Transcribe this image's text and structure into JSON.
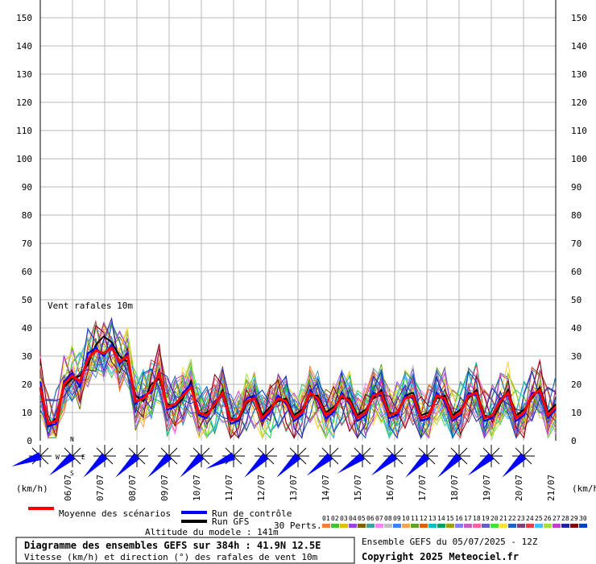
{
  "chart_data": {
    "type": "line",
    "annotation": "Vent rafales 10m",
    "ylim": [
      0,
      150
    ],
    "yticks": [
      0,
      10,
      20,
      30,
      40,
      50,
      60,
      70,
      80,
      90,
      100,
      110,
      120,
      130,
      140,
      150
    ],
    "unit_left": "(km/h)",
    "unit_right": "(km/h)",
    "date_labels": [
      "06/07",
      "07/07",
      "08/07",
      "09/07",
      "10/07",
      "11/07",
      "12/07",
      "13/07",
      "14/07",
      "15/07",
      "16/07",
      "17/07",
      "18/07",
      "19/07",
      "20/07",
      "21/07"
    ],
    "step_hours": 6,
    "mean": [
      19,
      6,
      7,
      20,
      23,
      21,
      29,
      32,
      31,
      33,
      28,
      30,
      14,
      15,
      18,
      24,
      12,
      13,
      16,
      19,
      10,
      9,
      13,
      17,
      7,
      8,
      14,
      15,
      8,
      11,
      15,
      14,
      8,
      10,
      17,
      15,
      9,
      11,
      16,
      14,
      8,
      10,
      16,
      17,
      9,
      10,
      15,
      16,
      8,
      9,
      16,
      15,
      8,
      10,
      16,
      17,
      8,
      9,
      14,
      17,
      8,
      10,
      16,
      18,
      9,
      12
    ],
    "control": [
      21,
      5,
      6,
      21,
      24,
      19,
      31,
      33,
      30,
      34,
      27,
      31,
      13,
      16,
      17,
      25,
      11,
      12,
      17,
      20,
      9,
      8,
      14,
      16,
      6,
      7,
      15,
      16,
      7,
      10,
      16,
      13,
      7,
      9,
      18,
      14,
      8,
      10,
      17,
      13,
      7,
      9,
      17,
      16,
      8,
      9,
      16,
      15,
      7,
      8,
      17,
      14,
      7,
      9,
      17,
      16,
      7,
      8,
      15,
      16,
      7,
      9,
      17,
      17,
      8,
      11
    ],
    "gfs": [
      18,
      5,
      8,
      19,
      22,
      23,
      27,
      34,
      37,
      35,
      30,
      28,
      16,
      14,
      20,
      22,
      13,
      12,
      15,
      21,
      9,
      10,
      12,
      18,
      8,
      7,
      13,
      16,
      9,
      12,
      14,
      15,
      9,
      11,
      16,
      16,
      10,
      12,
      15,
      15,
      9,
      11,
      15,
      18,
      10,
      9,
      16,
      17,
      9,
      10,
      15,
      16,
      9,
      11,
      15,
      18,
      9,
      8,
      13,
      18,
      9,
      11,
      15,
      19,
      10,
      13
    ],
    "legend": {
      "mean": "Moyenne des scénarios",
      "control": "Run de contrôle",
      "gfs": "Run GFS",
      "perts": "30 Perts."
    },
    "pert_numbers": [
      "01",
      "02",
      "03",
      "04",
      "05",
      "06",
      "07",
      "08",
      "09",
      "10",
      "11",
      "12",
      "13",
      "14",
      "15",
      "16",
      "17",
      "18",
      "19",
      "20",
      "21",
      "22",
      "23",
      "24",
      "25",
      "26",
      "27",
      "28",
      "29",
      "30"
    ],
    "pert_colors": [
      "#f08040",
      "#40c040",
      "#e0c000",
      "#a040e0",
      "#806000",
      "#40a0a0",
      "#ff80ff",
      "#c0c0c0",
      "#4080ff",
      "#ffa060",
      "#60a030",
      "#e06000",
      "#00c0c0",
      "#00a060",
      "#a0a000",
      "#8080ff",
      "#c060c0",
      "#ff60a0",
      "#6060c0",
      "#40e040",
      "#ffe040",
      "#2060c0",
      "#804080",
      "#e04040",
      "#40c0ff",
      "#a0e040",
      "#c040c0",
      "#2020a0",
      "#800000",
      "#0040c0"
    ],
    "wind_dirs": [
      250,
      230,
      225,
      225,
      225,
      225,
      245,
      225,
      225,
      230,
      235,
      230,
      225,
      225,
      230,
      225
    ],
    "wind_compass": [
      "N",
      "W",
      "E",
      "S"
    ],
    "altitude": "Altitude du modele : 141m",
    "title_box": {
      "line1": "Diagramme des ensembles GEFS sur 384h : 41.9N 12.5E",
      "line2": "Vitesse (km/h) et direction (°) des rafales de vent 10m"
    },
    "run_label": "Ensemble GEFS du 05/07/2025 - 12Z",
    "copyright": "Copyright 2025 Meteociel.fr"
  }
}
